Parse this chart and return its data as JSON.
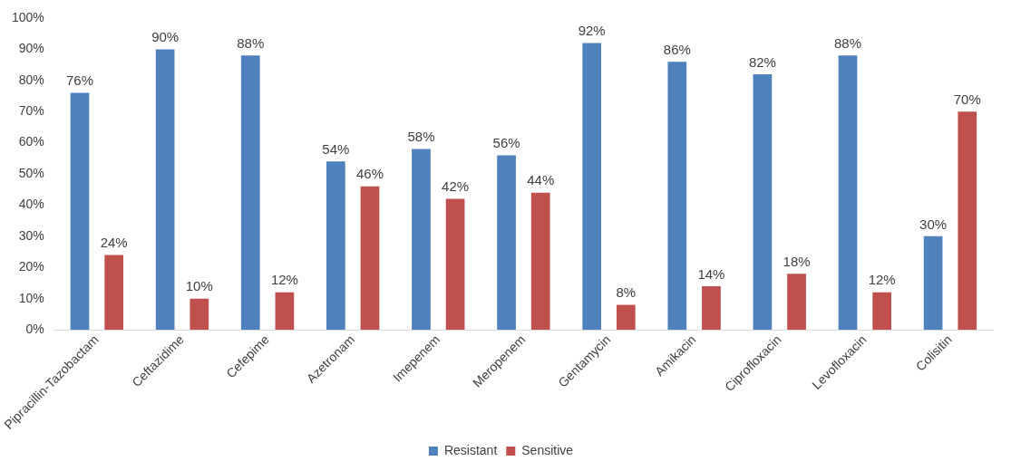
{
  "chart_data": {
    "type": "bar",
    "categories": [
      "Pipracillin-Tazobactam",
      "Ceftazidime",
      "Cefepime",
      "Azetronam",
      "Imepenem",
      "Meropenem",
      "Gentamycin",
      "Amikacin",
      "Ciprofloxacin",
      "Levofloxacin",
      "Colisitin"
    ],
    "series": [
      {
        "name": "Resistant",
        "color": "#4f81bd",
        "values": [
          76,
          90,
          88,
          54,
          58,
          56,
          92,
          86,
          82,
          88,
          30
        ],
        "value_labels": [
          "76%",
          "90%",
          "88%",
          "54%",
          "58%",
          "56%",
          "92%",
          "86%",
          "82%",
          "88%",
          "30%"
        ]
      },
      {
        "name": "Sensitive",
        "color": "#c0504d",
        "values": [
          24,
          10,
          12,
          46,
          42,
          44,
          8,
          14,
          18,
          12,
          70
        ],
        "value_labels": [
          "24%",
          "10%",
          "12%",
          "46%",
          "42%",
          "44%",
          "8%",
          "14%",
          "18%",
          "12%",
          "70%"
        ]
      }
    ],
    "ylim": [
      0,
      100
    ],
    "yticks": [
      {
        "value": 0,
        "label": "0%"
      },
      {
        "value": 10,
        "label": "10%"
      },
      {
        "value": 20,
        "label": "20%"
      },
      {
        "value": 30,
        "label": "30%"
      },
      {
        "value": 40,
        "label": "40%"
      },
      {
        "value": 50,
        "label": "50%"
      },
      {
        "value": 60,
        "label": "60%"
      },
      {
        "value": 70,
        "label": "70%"
      },
      {
        "value": 80,
        "label": "80%"
      },
      {
        "value": 90,
        "label": "90%"
      },
      {
        "value": 100,
        "label": "100%"
      }
    ],
    "grid": false,
    "legend": "bottom"
  }
}
